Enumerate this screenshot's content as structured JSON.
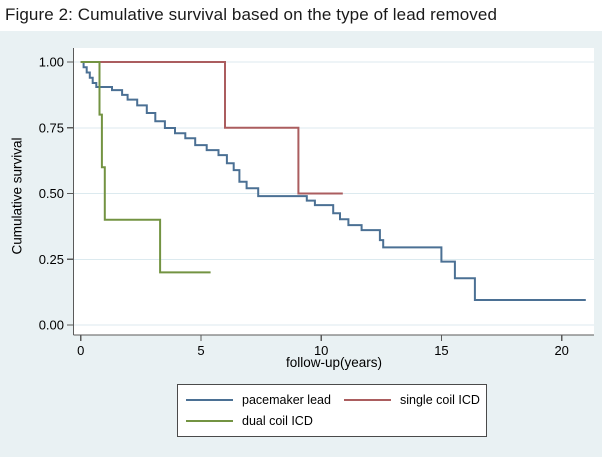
{
  "figure": {
    "title": "Figure 2: Cumulative survival based on the type of lead removed"
  },
  "colors": {
    "panel_bg": "#e9f1f3",
    "plot_bg": "#ffffff",
    "grid": "#dceaef",
    "axis": "#5a5a5a",
    "tick_text": "#000000",
    "legend_border": "#4a4a4a",
    "pacemaker_blue": "#4b7094",
    "single_coil_red": "#ab5d5f",
    "dual_coil_green": "#739342"
  },
  "chart_data": {
    "type": "line",
    "subtype": "kaplan-meier-step",
    "title": "Figure 2: Cumulative survival based on the type of lead removed",
    "xlabel": "follow-up(years)",
    "ylabel": "Cumulative survival",
    "xlim": [
      0,
      21.4
    ],
    "ylim": [
      0,
      1
    ],
    "grid": "horizontal-only",
    "legend_position": "bottom-center",
    "x_ticks": [
      {
        "v": 0,
        "label": "0"
      },
      {
        "v": 5,
        "label": "5"
      },
      {
        "v": 10,
        "label": "10"
      },
      {
        "v": 15,
        "label": "15"
      },
      {
        "v": 20,
        "label": "20"
      }
    ],
    "y_ticks": [
      {
        "v": 0,
        "label": "0.00"
      },
      {
        "v": 0.25,
        "label": "0.25"
      },
      {
        "v": 0.5,
        "label": "0.50"
      },
      {
        "v": 0.75,
        "label": "0.75"
      },
      {
        "v": 1,
        "label": "1.00"
      }
    ],
    "series": [
      {
        "name": "pacemaker lead",
        "color": "#4b7094",
        "end_time": 21.0,
        "steps": [
          [
            0,
            1.0
          ],
          [
            0.12,
            0.98
          ],
          [
            0.25,
            0.96
          ],
          [
            0.38,
            0.94
          ],
          [
            0.5,
            0.92
          ],
          [
            0.65,
            0.905
          ],
          [
            1.3,
            0.893
          ],
          [
            1.72,
            0.875
          ],
          [
            1.95,
            0.857
          ],
          [
            2.35,
            0.835
          ],
          [
            2.75,
            0.806
          ],
          [
            3.1,
            0.775
          ],
          [
            3.5,
            0.749
          ],
          [
            3.92,
            0.729
          ],
          [
            4.35,
            0.71
          ],
          [
            4.76,
            0.684
          ],
          [
            5.24,
            0.665
          ],
          [
            5.73,
            0.646
          ],
          [
            6.08,
            0.615
          ],
          [
            6.36,
            0.589
          ],
          [
            6.6,
            0.545
          ],
          [
            6.9,
            0.52
          ],
          [
            7.38,
            0.49
          ],
          [
            9.4,
            0.473
          ],
          [
            9.74,
            0.456
          ],
          [
            10.5,
            0.425
          ],
          [
            10.78,
            0.402
          ],
          [
            11.13,
            0.38
          ],
          [
            11.68,
            0.361
          ],
          [
            12.44,
            0.323
          ],
          [
            12.58,
            0.295
          ],
          [
            15.0,
            0.241
          ],
          [
            15.56,
            0.178
          ],
          [
            16.39,
            0.095
          ]
        ]
      },
      {
        "name": "single coil ICD",
        "color": "#ab5d5f",
        "end_time": 10.9,
        "steps": [
          [
            0,
            1.0
          ],
          [
            6.0,
            0.75
          ],
          [
            9.05,
            0.5
          ]
        ]
      },
      {
        "name": "dual coil ICD",
        "color": "#739342",
        "end_time": 5.4,
        "steps": [
          [
            0,
            1.0
          ],
          [
            0.78,
            0.8
          ],
          [
            0.88,
            0.6
          ],
          [
            1.0,
            0.4
          ],
          [
            3.3,
            0.2
          ]
        ]
      }
    ]
  }
}
